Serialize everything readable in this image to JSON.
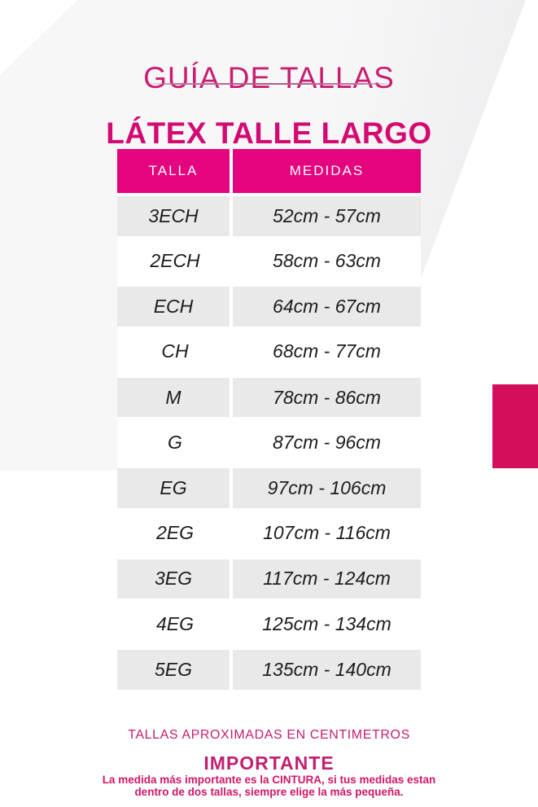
{
  "page": {
    "title": "GUÍA DE TALLAS",
    "subtitle": "LÁTEX TALLE LARGO"
  },
  "table": {
    "headers": [
      "TALLA",
      "MEDIDAS"
    ],
    "rows": [
      {
        "talla": "3ECH",
        "medidas": "52cm - 57cm"
      },
      {
        "talla": "2ECH",
        "medidas": "58cm - 63cm"
      },
      {
        "talla": "ECH",
        "medidas": "64cm - 67cm"
      },
      {
        "talla": "CH",
        "medidas": "68cm - 77cm"
      },
      {
        "talla": "M",
        "medidas": "78cm - 86cm"
      },
      {
        "talla": "G",
        "medidas": "87cm - 96cm"
      },
      {
        "talla": "EG",
        "medidas": "97cm - 106cm"
      },
      {
        "talla": "2EG",
        "medidas": "107cm - 116cm"
      },
      {
        "talla": "3EG",
        "medidas": "117cm - 124cm"
      },
      {
        "talla": "4EG",
        "medidas": "125cm - 134cm"
      },
      {
        "talla": "5EG",
        "medidas": "135cm - 140cm"
      }
    ]
  },
  "footer": {
    "approx_note": "TALLAS APROXIMADAS EN CENTIMETROS",
    "important_label": "IMPORTANTE",
    "note_line1": "La medida más importante es la CINTURA, si tus medidas estan",
    "note_line2": "dentro de dos tallas, siempre elige la más pequeña."
  },
  "colors": {
    "title_pink": "#c81d70",
    "subtitle_pink": "#d30a72",
    "header_pink": "#e4057e",
    "accent_block": "#d30f5c",
    "footer_pink": "#c2206f",
    "note_pink": "#cf1768",
    "row_gray": "#e9e9e9"
  }
}
